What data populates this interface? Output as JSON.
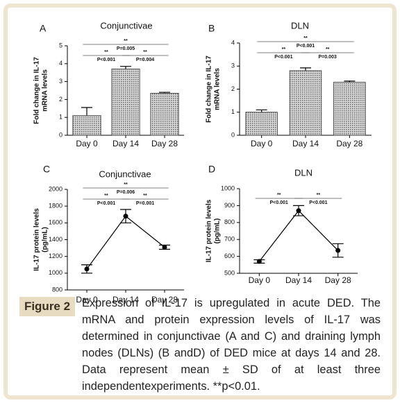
{
  "chart_data": [
    {
      "type": "bar",
      "panel": "A",
      "title": "Conjunctivae",
      "ylabel": [
        "Fold change in IL-17",
        "mRNA levels"
      ],
      "categories": [
        "Day 0",
        "Day 14",
        "Day 28"
      ],
      "values": [
        1.1,
        3.7,
        2.35
      ],
      "errors": [
        0.45,
        0.15,
        0.05
      ],
      "color": "#888888",
      "ylim": [
        0,
        5
      ],
      "yticks": [
        0,
        1,
        2,
        3,
        4,
        5
      ],
      "annotations": [
        {
          "stars": "**",
          "p": "P=0.005"
        },
        {
          "stars": "**",
          "p": "P<0.001"
        },
        {
          "stars": "**",
          "p": "P=0.004"
        }
      ]
    },
    {
      "type": "bar",
      "panel": "B",
      "title": "DLN",
      "ylabel": [
        "Fold change in IL-17",
        "mRNA levels"
      ],
      "categories": [
        "Day 0",
        "Day 14",
        "Day 28"
      ],
      "values": [
        1.0,
        2.8,
        2.3
      ],
      "errors": [
        0.1,
        0.12,
        0.05
      ],
      "color": "#888888",
      "ylim": [
        0,
        4
      ],
      "yticks": [
        0,
        1,
        2,
        3,
        4
      ],
      "annotations": [
        {
          "stars": "**",
          "p": "P<0.001"
        },
        {
          "stars": "**",
          "p": "P<0.001"
        },
        {
          "stars": "**",
          "p": "P=0.003"
        }
      ]
    },
    {
      "type": "line",
      "panel": "C",
      "title": "Conjunctivae",
      "ylabel": [
        "IL-17 protein levels",
        "(pg/mL)"
      ],
      "categories": [
        "Day 0",
        "Day 14",
        "Day 28"
      ],
      "values": [
        1050,
        1680,
        1310
      ],
      "errors": [
        50,
        80,
        25
      ],
      "color": "#000000",
      "ylim": [
        800,
        2000
      ],
      "yticks": [
        800,
        1000,
        1200,
        1400,
        1600,
        1800,
        2000
      ],
      "annotations": [
        {
          "stars": "**",
          "p": "P=0.006"
        },
        {
          "stars": "**",
          "p": "P<0.001"
        },
        {
          "stars": "**",
          "p": "P=0.001"
        }
      ]
    },
    {
      "type": "line",
      "panel": "D",
      "title": "DLN",
      "ylabel": [
        "IL-17 protein levels",
        "(pg/mL)"
      ],
      "categories": [
        "Day 0",
        "Day 14",
        "Day 28"
      ],
      "values": [
        570,
        870,
        635
      ],
      "errors": [
        10,
        30,
        40
      ],
      "color": "#000000",
      "ylim": [
        500,
        1000
      ],
      "yticks": [
        500,
        600,
        700,
        800,
        900,
        1000
      ],
      "annotations": [
        {
          "stars": "**",
          "p": "P<0.001"
        },
        {
          "stars": "**",
          "p": "P<0.001"
        }
      ]
    }
  ],
  "figure": {
    "label": "Figure 2",
    "caption": "Expression of IL-17 is upregulated in acute DED. The mRNA and protein expression levels of IL-17 was determined in conjunctivae (A and C) and draining lymph nodes (DLNs) (B andD) of DED mice at days 14 and 28. Data represent mean ± SD of at least three independentexperiments. **p<0.01."
  }
}
